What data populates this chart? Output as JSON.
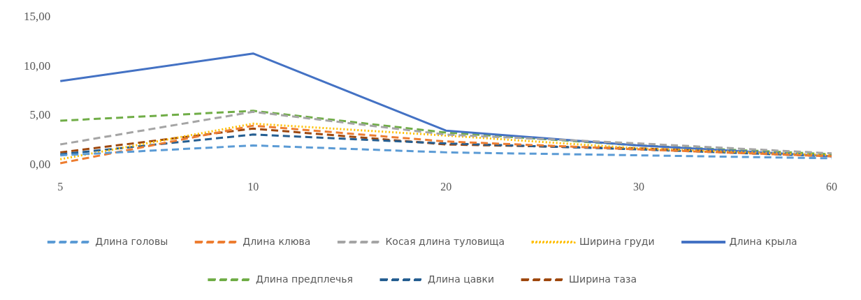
{
  "chart_data": {
    "type": "line",
    "categories": [
      "5",
      "10",
      "20",
      "30",
      "60"
    ],
    "series": [
      {
        "name": "Длина головы",
        "color": "#5b9bd5",
        "line_style": "dashed",
        "values": [
          1.0,
          2.0,
          1.3,
          1.0,
          0.7
        ]
      },
      {
        "name": "Длина клюва",
        "color": "#ed7d31",
        "line_style": "dashed",
        "values": [
          0.2,
          4.0,
          2.4,
          1.6,
          0.9
        ]
      },
      {
        "name": "Косая длина туловища",
        "color": "#a5a5a5",
        "line_style": "dashed",
        "values": [
          2.1,
          5.4,
          3.1,
          2.2,
          1.2
        ]
      },
      {
        "name": "Ширина груди",
        "color": "#ffc000",
        "line_style": "dotted",
        "values": [
          0.6,
          4.2,
          3.0,
          1.7,
          1.0
        ]
      },
      {
        "name": "Длина крыла",
        "color": "#4472c4",
        "line_style": "solid",
        "values": [
          8.5,
          11.3,
          3.5,
          2.0,
          0.9
        ]
      },
      {
        "name": "Длина предплечья",
        "color": "#70ad47",
        "line_style": "dashed",
        "values": [
          4.5,
          5.5,
          3.3,
          2.0,
          1.1
        ]
      },
      {
        "name": "Длина цавки",
        "color": "#255e91",
        "line_style": "dashed",
        "values": [
          1.1,
          3.1,
          2.2,
          1.6,
          0.9
        ]
      },
      {
        "name": "Ширина таза",
        "color": "#9e480e",
        "line_style": "dashed",
        "values": [
          1.3,
          3.7,
          2.1,
          1.7,
          1.0
        ]
      }
    ],
    "ylim": [
      0,
      15
    ],
    "yticks": [
      {
        "value": 0,
        "label": "0,00"
      },
      {
        "value": 5,
        "label": "5,00"
      },
      {
        "value": 10,
        "label": "10,00"
      },
      {
        "value": 15,
        "label": "15,00"
      }
    ],
    "grid": false,
    "legend": "bottom",
    "marker": "none"
  }
}
